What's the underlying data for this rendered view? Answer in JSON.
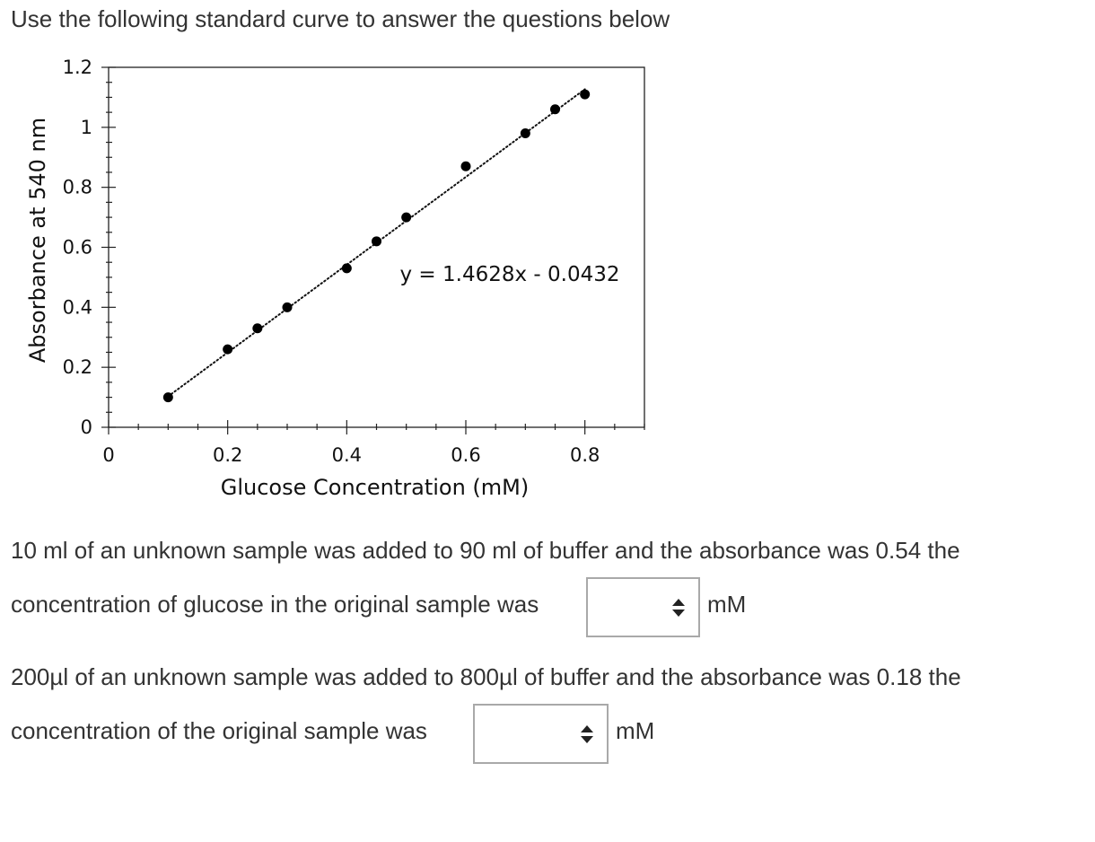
{
  "intro": "Use the following standard curve to answer the questions below",
  "chart_data": {
    "type": "scatter",
    "xlabel": "Glucose Concentration (mM)",
    "ylabel": "Absorbance at 540 nm",
    "xlim": [
      0,
      0.9
    ],
    "ylim": [
      0,
      1.2
    ],
    "x_ticks": [
      "0",
      "0.2",
      "0.4",
      "0.6",
      "0.8"
    ],
    "y_ticks": [
      "0",
      "0.2",
      "0.4",
      "0.6",
      "0.8",
      "1",
      "1.2"
    ],
    "points": [
      {
        "x": 0.1,
        "y": 0.1
      },
      {
        "x": 0.2,
        "y": 0.26
      },
      {
        "x": 0.25,
        "y": 0.33
      },
      {
        "x": 0.3,
        "y": 0.4
      },
      {
        "x": 0.4,
        "y": 0.53
      },
      {
        "x": 0.45,
        "y": 0.62
      },
      {
        "x": 0.5,
        "y": 0.7
      },
      {
        "x": 0.6,
        "y": 0.87
      },
      {
        "x": 0.7,
        "y": 0.98
      },
      {
        "x": 0.75,
        "y": 1.06
      },
      {
        "x": 0.8,
        "y": 1.11
      }
    ],
    "trendline": {
      "slope": 1.4628,
      "intercept": -0.0432,
      "style": "dotted"
    },
    "equation": "y = 1.4628x - 0.0432",
    "grid": false,
    "legend": "none"
  },
  "questions": [
    {
      "line1": "10 ml of an unknown sample was added to   90 ml of buffer and the absorbance was 0.54 the",
      "line2": "concentration of glucose in the original sample was",
      "selected": "",
      "unit": "mM"
    },
    {
      "line1": "200µl of an unknown sample was added to 800µl of buffer and the absorbance was 0.18 the",
      "line2": "concentration of the original sample was",
      "selected": "",
      "unit": "mM"
    }
  ]
}
